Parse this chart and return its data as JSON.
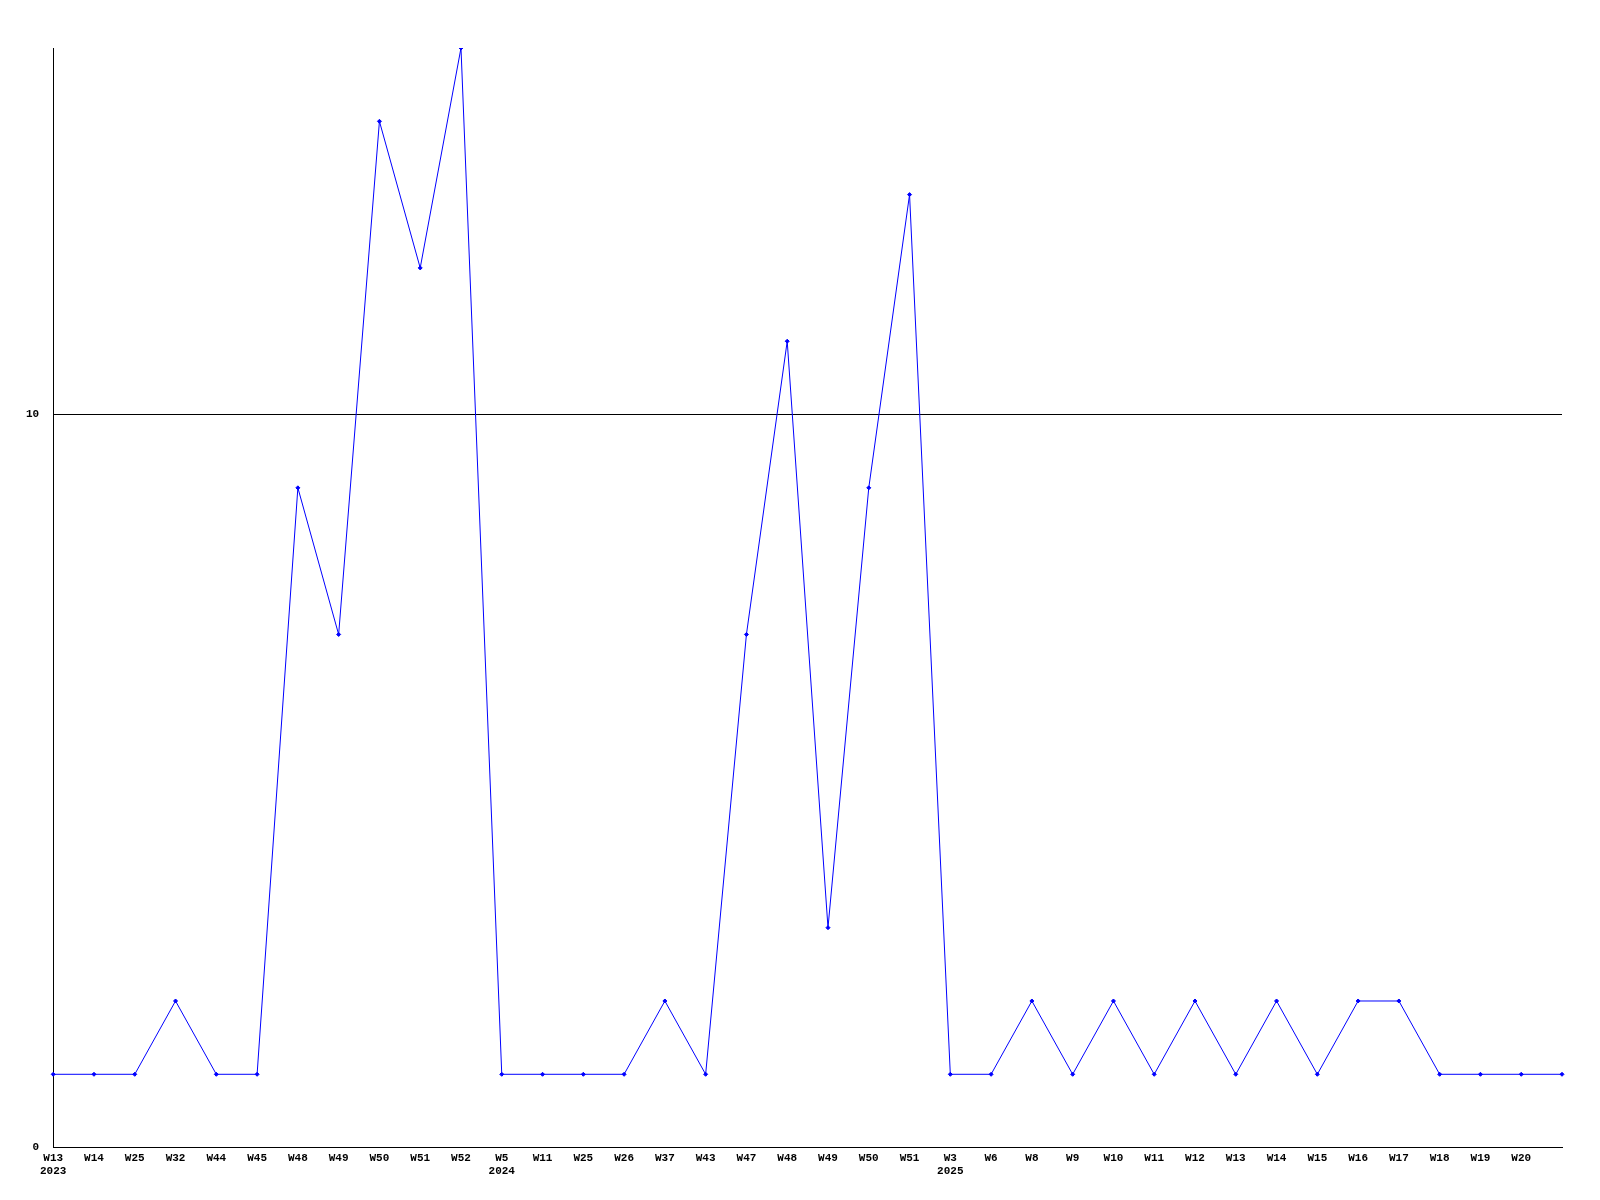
{
  "chart_data": {
    "type": "line",
    "categories": [
      "W13\n2023",
      "W14",
      "W25",
      "W32",
      "W44",
      "W45",
      "W48",
      "W49",
      "W50",
      "W51",
      "W52",
      "W5\n2024",
      "W11",
      "W25",
      "W26",
      "W37",
      "W43",
      "W47",
      "W48",
      "W49",
      "W50",
      "W51",
      "W3\n2025",
      "W6",
      "W8",
      "W9",
      "W10",
      "W11",
      "W12",
      "W13",
      "W14",
      "W15",
      "W16",
      "W17",
      "W18",
      "W19",
      "W20",
      null
    ],
    "series": [
      {
        "color": "#0000ff",
        "values": [
          1,
          1,
          1,
          2,
          1,
          1,
          9,
          7,
          14,
          12,
          15,
          1,
          1,
          1,
          1,
          2,
          1,
          7,
          11,
          3,
          9,
          13,
          1,
          1,
          2,
          1,
          2,
          1,
          2,
          1,
          2,
          1,
          2,
          2,
          1,
          1,
          1,
          1
        ]
      }
    ],
    "ylim": [
      0,
      15
    ],
    "yticks": [
      0,
      10
    ],
    "grid": "y",
    "legend": false,
    "marker": "diamond",
    "line_style": "solid"
  }
}
